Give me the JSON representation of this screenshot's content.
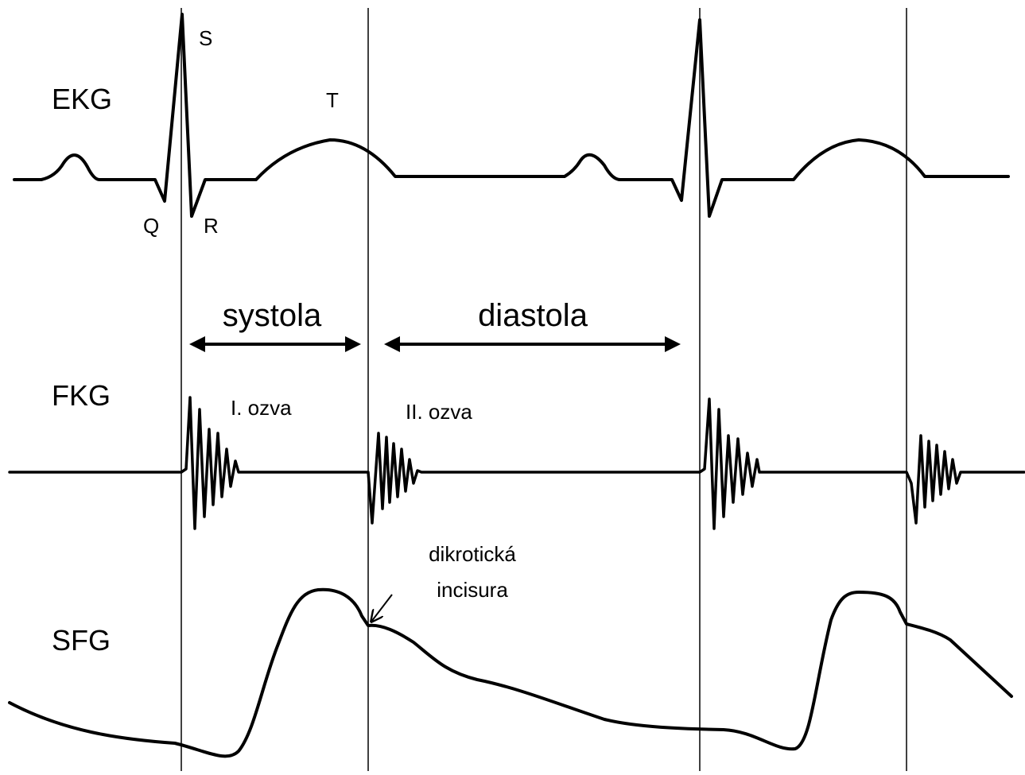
{
  "traces": [
    {
      "label": "EKG"
    },
    {
      "label": "FKG"
    },
    {
      "label": "SFG"
    }
  ],
  "ekg_waves": {
    "s": "S",
    "t": "T",
    "q": "Q",
    "r": "R"
  },
  "phases": {
    "systole": "systola",
    "diastole": "diastola"
  },
  "heart_sounds": {
    "first": "I. ozva",
    "second": "II. ozva"
  },
  "annotation": {
    "line1": "dikrotická",
    "line2": "incisura"
  }
}
